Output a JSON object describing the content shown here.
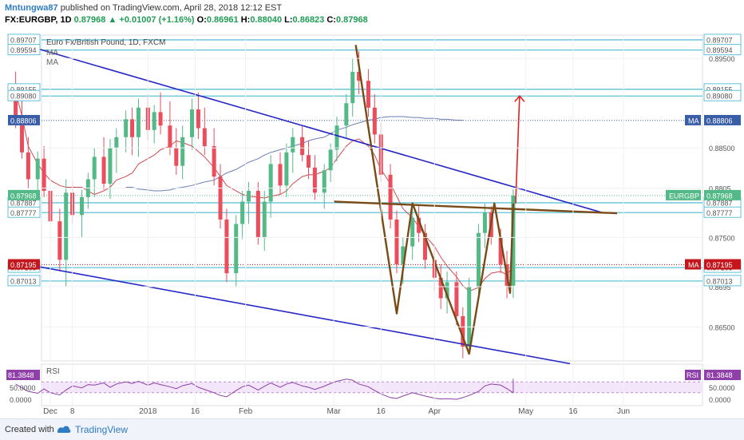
{
  "header": {
    "author": "Mntungwa87",
    "published_text": "published on TradingView.com, April 28, 2018 12:12 EST",
    "symbol": "FX:EURGBP, 1D",
    "last": "0.87968",
    "change": "+0.01007 (+1.16%)",
    "ohlc": {
      "open": "0.86961",
      "high": "0.88040",
      "low": "0.86823",
      "close": "0.87968"
    }
  },
  "chart_data": {
    "type": "line",
    "title": "Euro Fx/British Pound, 1D, FXCM",
    "indicator_labels": [
      "MA",
      "MA"
    ],
    "ylim": [
      0.8612,
      0.8976
    ],
    "y_ticks": [
      0.865,
      0.8695,
      0.875,
      0.8805,
      0.885,
      0.895
    ],
    "y_tick_labels": [
      "0.86500",
      "0.8695",
      "0.87500",
      "0.8805",
      "0.88500",
      "0.89500"
    ],
    "x_ticks": [
      {
        "label": "Dec",
        "x": "2017-12-01"
      },
      {
        "label": "8",
        "x": "2017-12-08"
      },
      {
        "label": "2018",
        "x": "2018-01-01"
      },
      {
        "label": "16",
        "x": "2018-01-16"
      },
      {
        "label": "Feb",
        "x": "2018-02-01"
      },
      {
        "label": "Mar",
        "x": "2018-03-01"
      },
      {
        "label": "16",
        "x": "2018-03-16"
      },
      {
        "label": "Apr",
        "x": "2018-04-02"
      },
      {
        "label": "May",
        "x": "2018-05-01"
      },
      {
        "label": "16",
        "x": "2018-05-16"
      },
      {
        "label": "Jun",
        "x": "2018-06-01"
      }
    ],
    "price_levels": [
      {
        "value": 0.89707,
        "label": "0.89707"
      },
      {
        "value": 0.89594,
        "label": "0.89594"
      },
      {
        "value": 0.89155,
        "label": "0.89155"
      },
      {
        "value": 0.8908,
        "label": "0.89080"
      },
      {
        "value": 0.87887,
        "label": "0.87887"
      },
      {
        "value": 0.87777,
        "label": "0.87777"
      },
      {
        "value": 0.87163,
        "label": "0.87163"
      },
      {
        "value": 0.87013,
        "label": "0.87013"
      }
    ],
    "markers": [
      {
        "name": "MA",
        "value": 0.88806,
        "label": "0.88806",
        "color": "#3a5da8"
      },
      {
        "name": "EURGBP",
        "value": 0.87968,
        "label": "0.87968",
        "color": "#53b987"
      },
      {
        "name": "MA",
        "value": 0.87195,
        "label": "0.87195",
        "color": "#c4161c"
      }
    ],
    "candles": [
      {
        "x": "2017-11-20",
        "o": 0.8915,
        "h": 0.8935,
        "l": 0.8872,
        "c": 0.888
      },
      {
        "x": "2017-11-22",
        "o": 0.888,
        "h": 0.8905,
        "l": 0.8838,
        "c": 0.8845
      },
      {
        "x": "2017-11-24",
        "o": 0.8845,
        "h": 0.8862,
        "l": 0.8805,
        "c": 0.8815
      },
      {
        "x": "2017-11-27",
        "o": 0.8815,
        "h": 0.8846,
        "l": 0.879,
        "c": 0.8838
      },
      {
        "x": "2017-11-29",
        "o": 0.8838,
        "h": 0.8852,
        "l": 0.8795,
        "c": 0.8802
      },
      {
        "x": "2017-12-01",
        "o": 0.8802,
        "h": 0.8815,
        "l": 0.876,
        "c": 0.8768
      },
      {
        "x": "2017-12-04",
        "o": 0.8768,
        "h": 0.8782,
        "l": 0.8712,
        "c": 0.8725
      },
      {
        "x": "2017-12-06",
        "o": 0.8725,
        "h": 0.8815,
        "l": 0.8695,
        "c": 0.88
      },
      {
        "x": "2017-12-08",
        "o": 0.88,
        "h": 0.8812,
        "l": 0.8765,
        "c": 0.8775
      },
      {
        "x": "2017-12-11",
        "o": 0.8775,
        "h": 0.8803,
        "l": 0.875,
        "c": 0.8795
      },
      {
        "x": "2017-12-13",
        "o": 0.8795,
        "h": 0.8822,
        "l": 0.8782,
        "c": 0.8815
      },
      {
        "x": "2017-12-15",
        "o": 0.8815,
        "h": 0.885,
        "l": 0.8795,
        "c": 0.884
      },
      {
        "x": "2017-12-18",
        "o": 0.884,
        "h": 0.8862,
        "l": 0.8803,
        "c": 0.881
      },
      {
        "x": "2017-12-20",
        "o": 0.881,
        "h": 0.886,
        "l": 0.8793,
        "c": 0.885
      },
      {
        "x": "2017-12-22",
        "o": 0.885,
        "h": 0.8872,
        "l": 0.8822,
        "c": 0.8862
      },
      {
        "x": "2017-12-25",
        "o": 0.8862,
        "h": 0.8892,
        "l": 0.8845,
        "c": 0.8882
      },
      {
        "x": "2017-12-27",
        "o": 0.8882,
        "h": 0.8895,
        "l": 0.8842,
        "c": 0.8862
      },
      {
        "x": "2017-12-29",
        "o": 0.8862,
        "h": 0.8905,
        "l": 0.884,
        "c": 0.8895
      },
      {
        "x": "2018-01-01",
        "o": 0.8895,
        "h": 0.891,
        "l": 0.8858,
        "c": 0.887
      },
      {
        "x": "2018-01-03",
        "o": 0.887,
        "h": 0.8898,
        "l": 0.8855,
        "c": 0.889
      },
      {
        "x": "2018-01-05",
        "o": 0.889,
        "h": 0.8912,
        "l": 0.8865,
        "c": 0.8875
      },
      {
        "x": "2018-01-08",
        "o": 0.8875,
        "h": 0.8902,
        "l": 0.8842,
        "c": 0.885
      },
      {
        "x": "2018-01-10",
        "o": 0.885,
        "h": 0.8872,
        "l": 0.882,
        "c": 0.883
      },
      {
        "x": "2018-01-12",
        "o": 0.883,
        "h": 0.8875,
        "l": 0.8815,
        "c": 0.8862
      },
      {
        "x": "2018-01-15",
        "o": 0.8862,
        "h": 0.8905,
        "l": 0.8848,
        "c": 0.8893
      },
      {
        "x": "2018-01-17",
        "o": 0.8893,
        "h": 0.8912,
        "l": 0.886,
        "c": 0.8872
      },
      {
        "x": "2018-01-19",
        "o": 0.8872,
        "h": 0.8895,
        "l": 0.8842,
        "c": 0.8852
      },
      {
        "x": "2018-01-22",
        "o": 0.8852,
        "h": 0.8872,
        "l": 0.8808,
        "c": 0.8818
      },
      {
        "x": "2018-01-24",
        "o": 0.8818,
        "h": 0.8832,
        "l": 0.876,
        "c": 0.877
      },
      {
        "x": "2018-01-26",
        "o": 0.877,
        "h": 0.8782,
        "l": 0.87,
        "c": 0.871
      },
      {
        "x": "2018-01-29",
        "o": 0.871,
        "h": 0.8775,
        "l": 0.8695,
        "c": 0.8765
      },
      {
        "x": "2018-01-31",
        "o": 0.8765,
        "h": 0.8802,
        "l": 0.8748,
        "c": 0.879
      },
      {
        "x": "2018-02-02",
        "o": 0.879,
        "h": 0.8812,
        "l": 0.8765,
        "c": 0.8802
      },
      {
        "x": "2018-02-05",
        "o": 0.8802,
        "h": 0.8812,
        "l": 0.8742,
        "c": 0.875
      },
      {
        "x": "2018-02-07",
        "o": 0.875,
        "h": 0.8802,
        "l": 0.8735,
        "c": 0.879
      },
      {
        "x": "2018-02-09",
        "o": 0.879,
        "h": 0.8842,
        "l": 0.8772,
        "c": 0.8832
      },
      {
        "x": "2018-02-12",
        "o": 0.8832,
        "h": 0.8845,
        "l": 0.8798,
        "c": 0.8808
      },
      {
        "x": "2018-02-14",
        "o": 0.8808,
        "h": 0.8855,
        "l": 0.8795,
        "c": 0.8845
      },
      {
        "x": "2018-02-16",
        "o": 0.8845,
        "h": 0.8872,
        "l": 0.8822,
        "c": 0.8862
      },
      {
        "x": "2018-02-19",
        "o": 0.8862,
        "h": 0.8875,
        "l": 0.8835,
        "c": 0.8842
      },
      {
        "x": "2018-02-21",
        "o": 0.8842,
        "h": 0.8858,
        "l": 0.8815,
        "c": 0.8828
      },
      {
        "x": "2018-02-23",
        "o": 0.8828,
        "h": 0.8842,
        "l": 0.8792,
        "c": 0.88
      },
      {
        "x": "2018-02-26",
        "o": 0.88,
        "h": 0.8832,
        "l": 0.8782,
        "c": 0.8825
      },
      {
        "x": "2018-02-28",
        "o": 0.8825,
        "h": 0.8855,
        "l": 0.8812,
        "c": 0.8848
      },
      {
        "x": "2018-03-02",
        "o": 0.8848,
        "h": 0.8885,
        "l": 0.8835,
        "c": 0.8875
      },
      {
        "x": "2018-03-05",
        "o": 0.8875,
        "h": 0.891,
        "l": 0.886,
        "c": 0.89
      },
      {
        "x": "2018-03-07",
        "o": 0.89,
        "h": 0.895,
        "l": 0.8885,
        "c": 0.8935
      },
      {
        "x": "2018-03-09",
        "o": 0.8935,
        "h": 0.8958,
        "l": 0.891,
        "c": 0.8925
      },
      {
        "x": "2018-03-12",
        "o": 0.8925,
        "h": 0.8938,
        "l": 0.8885,
        "c": 0.8895
      },
      {
        "x": "2018-03-14",
        "o": 0.8895,
        "h": 0.891,
        "l": 0.8855,
        "c": 0.8865
      },
      {
        "x": "2018-03-16",
        "o": 0.8865,
        "h": 0.8878,
        "l": 0.8812,
        "c": 0.882
      },
      {
        "x": "2018-03-19",
        "o": 0.882,
        "h": 0.8832,
        "l": 0.876,
        "c": 0.877
      },
      {
        "x": "2018-03-21",
        "o": 0.877,
        "h": 0.878,
        "l": 0.871,
        "c": 0.872
      },
      {
        "x": "2018-03-23",
        "o": 0.872,
        "h": 0.875,
        "l": 0.8698,
        "c": 0.874
      },
      {
        "x": "2018-03-26",
        "o": 0.874,
        "h": 0.8782,
        "l": 0.8725,
        "c": 0.8772
      },
      {
        "x": "2018-03-28",
        "o": 0.8772,
        "h": 0.8785,
        "l": 0.8745,
        "c": 0.8755
      },
      {
        "x": "2018-03-30",
        "o": 0.8755,
        "h": 0.8765,
        "l": 0.8715,
        "c": 0.8725
      },
      {
        "x": "2018-04-02",
        "o": 0.8725,
        "h": 0.8742,
        "l": 0.869,
        "c": 0.8705
      },
      {
        "x": "2018-04-04",
        "o": 0.8705,
        "h": 0.872,
        "l": 0.867,
        "c": 0.8682
      },
      {
        "x": "2018-04-06",
        "o": 0.8682,
        "h": 0.8712,
        "l": 0.8665,
        "c": 0.87
      },
      {
        "x": "2018-04-09",
        "o": 0.87,
        "h": 0.8712,
        "l": 0.8652,
        "c": 0.8662
      },
      {
        "x": "2018-04-11",
        "o": 0.8662,
        "h": 0.8672,
        "l": 0.8615,
        "c": 0.8628
      },
      {
        "x": "2018-04-13",
        "o": 0.8628,
        "h": 0.8705,
        "l": 0.862,
        "c": 0.8695
      },
      {
        "x": "2018-04-16",
        "o": 0.8695,
        "h": 0.8765,
        "l": 0.8685,
        "c": 0.8755
      },
      {
        "x": "2018-04-18",
        "o": 0.8755,
        "h": 0.8788,
        "l": 0.8738,
        "c": 0.8778
      },
      {
        "x": "2018-04-20",
        "o": 0.8778,
        "h": 0.8785,
        "l": 0.8742,
        "c": 0.875
      },
      {
        "x": "2018-04-23",
        "o": 0.875,
        "h": 0.876,
        "l": 0.871,
        "c": 0.872
      },
      {
        "x": "2018-04-25",
        "o": 0.872,
        "h": 0.8735,
        "l": 0.8682,
        "c": 0.8696
      },
      {
        "x": "2018-04-27",
        "o": 0.86961,
        "h": 0.8804,
        "l": 0.86823,
        "c": 0.87968
      }
    ],
    "ma_short": [
      [
        0.8912,
        0.8886,
        0.8852,
        0.8832,
        0.8822,
        0.8814,
        0.8808,
        0.8806,
        0.8806,
        0.8806,
        0.8802,
        0.8798,
        0.8802,
        0.8806,
        0.8814,
        0.8818,
        0.8822,
        0.8832,
        0.8838,
        0.8842,
        0.8848,
        0.8852,
        0.8858,
        0.8856,
        0.8852,
        0.8846,
        0.884,
        0.8828,
        0.8818,
        0.8808,
        0.8802,
        0.8798,
        0.8796,
        0.8795,
        0.8794,
        0.8796,
        0.8798,
        0.8802,
        0.881,
        0.8818,
        0.882,
        0.882,
        0.8824,
        0.8828,
        0.8838,
        0.8852,
        0.8858,
        0.886,
        0.8852,
        0.8842,
        0.8826,
        0.881,
        0.8796,
        0.8782,
        0.8772,
        0.8762,
        0.8752,
        0.874,
        0.8728,
        0.8718,
        0.8706,
        0.8696,
        0.869,
        0.8694,
        0.8704,
        0.871,
        0.8712,
        0.8708,
        0.8718
      ]
    ],
    "ma_long": [
      [
        0.8806,
        0.8806,
        0.8804,
        0.8803,
        0.8802,
        0.8802,
        0.8803,
        0.8805,
        0.8806,
        0.8808,
        0.881,
        0.8812,
        0.8814,
        0.8818,
        0.8822,
        0.8826,
        0.883,
        0.8834,
        0.8838,
        0.8842,
        0.8845,
        0.8848,
        0.885,
        0.8852,
        0.8855,
        0.8858,
        0.886,
        0.8862,
        0.8866,
        0.887,
        0.8873,
        0.8876,
        0.8878,
        0.8881,
        0.8882,
        0.8884,
        0.8885,
        0.8885,
        0.8885,
        0.8884,
        0.8884,
        0.8883,
        0.8883,
        0.8882,
        0.8882,
        0.8881,
        0.8881
      ]
    ],
    "ma_long_start": "2017-12-25",
    "channel_upper": [
      [
        "2017-11-20",
        0.8968
      ],
      [
        "2018-05-25",
        0.8778
      ]
    ],
    "channel_lower": [
      [
        "2017-11-20",
        0.8722
      ],
      [
        "2018-05-15",
        0.8609
      ]
    ],
    "neckline": [
      [
        "2018-03-01",
        0.879
      ],
      [
        "2018-05-30",
        0.8777
      ]
    ],
    "zigzag": [
      [
        "2018-03-08",
        0.8965
      ],
      [
        "2018-03-21",
        0.8665
      ],
      [
        "2018-03-26",
        0.8788
      ],
      [
        "2018-04-13",
        0.862
      ],
      [
        "2018-04-21",
        0.8788
      ],
      [
        "2018-04-26",
        0.8688
      ],
      [
        "2018-04-27",
        0.8788
      ]
    ],
    "target_arrow": [
      [
        "2018-04-27",
        0.8788
      ],
      [
        "2018-04-28",
        0.8908
      ]
    ],
    "rsi": {
      "label": "RSI",
      "value_label": "81.3848",
      "ticks": [
        "50.0000",
        "0.0000"
      ],
      "values": [
        [
          62,
          48,
          35,
          28,
          44,
          30,
          22,
          40,
          55,
          48,
          60,
          58,
          66,
          50,
          62,
          70,
          64,
          72,
          58,
          66,
          60,
          52,
          45,
          56,
          64,
          50,
          42,
          30,
          20,
          15,
          38,
          52,
          58,
          40,
          54,
          66,
          50,
          62,
          68,
          55,
          50,
          42,
          54,
          64,
          72,
          80,
          76,
          62,
          52,
          38,
          26,
          12,
          9,
          18,
          30,
          24,
          18,
          10,
          7,
          8,
          6,
          12,
          20,
          35,
          55,
          62,
          58,
          45,
          30,
          81.3848
        ]
      ]
    }
  },
  "footer": {
    "created_with": "Created with",
    "brand": "TradingView"
  }
}
